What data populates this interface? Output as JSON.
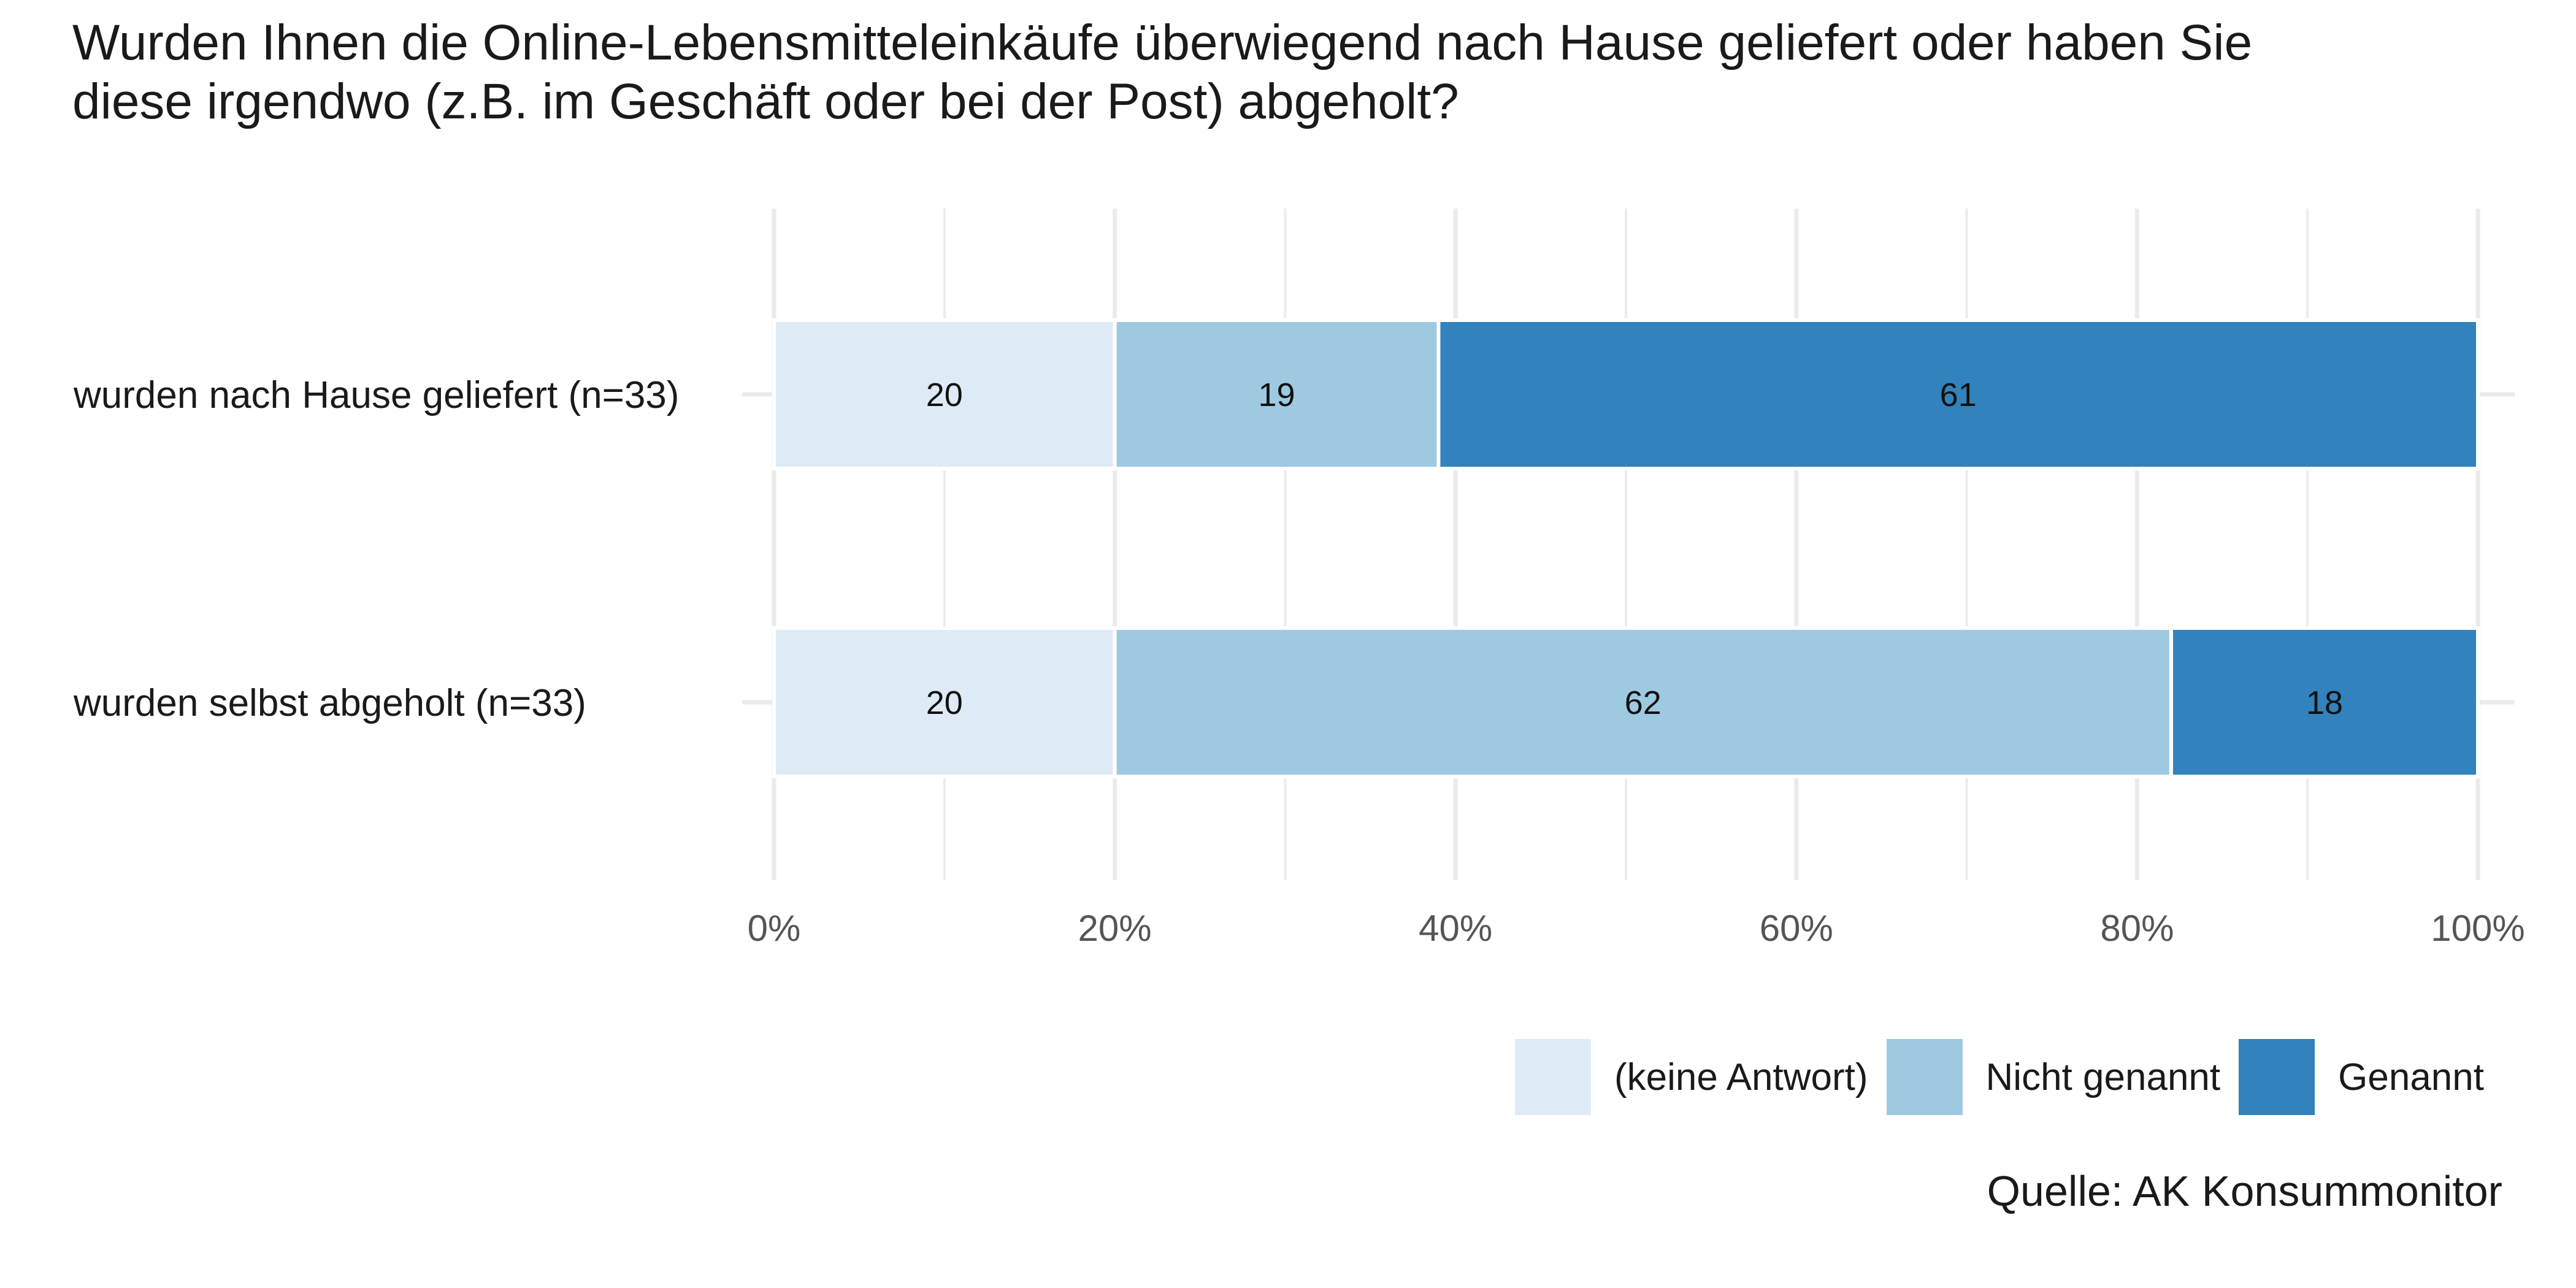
{
  "title_lines": [
    "Wurden Ihnen die Online-Lebensmitteleinkäufe überwiegend nach Hause geliefert oder haben Sie",
    "diese irgendwo (z.B. im Geschäft oder bei der Post) abgeholt?"
  ],
  "source": "Quelle: AK Konsummonitor",
  "chart_data": {
    "type": "bar",
    "orientation": "horizontal",
    "stacked": true,
    "title": "Wurden Ihnen die Online-Lebensmitteleinkäufe überwiegend nach Hause geliefert oder haben Sie diese irgendwo (z.B. im Geschäft oder bei der Post) abgeholt?",
    "categories": [
      "wurden nach Hause geliefert (n=33)",
      "wurden selbst abgeholt (n=33)"
    ],
    "series": [
      {
        "name": "(keine Antwort)",
        "color": "#deebf7",
        "values": [
          20,
          20
        ]
      },
      {
        "name": "Nicht genannt",
        "color": "#9ecae1",
        "values": [
          19,
          62
        ]
      },
      {
        "name": "Genannt",
        "color": "#3182bd",
        "values": [
          61,
          18
        ]
      }
    ],
    "xlim": [
      0,
      100
    ],
    "xticks": [
      "0%",
      "20%",
      "40%",
      "60%",
      "80%",
      "100%"
    ],
    "grid": true,
    "legend_position": "bottom-right",
    "xlabel": "",
    "ylabel": ""
  }
}
